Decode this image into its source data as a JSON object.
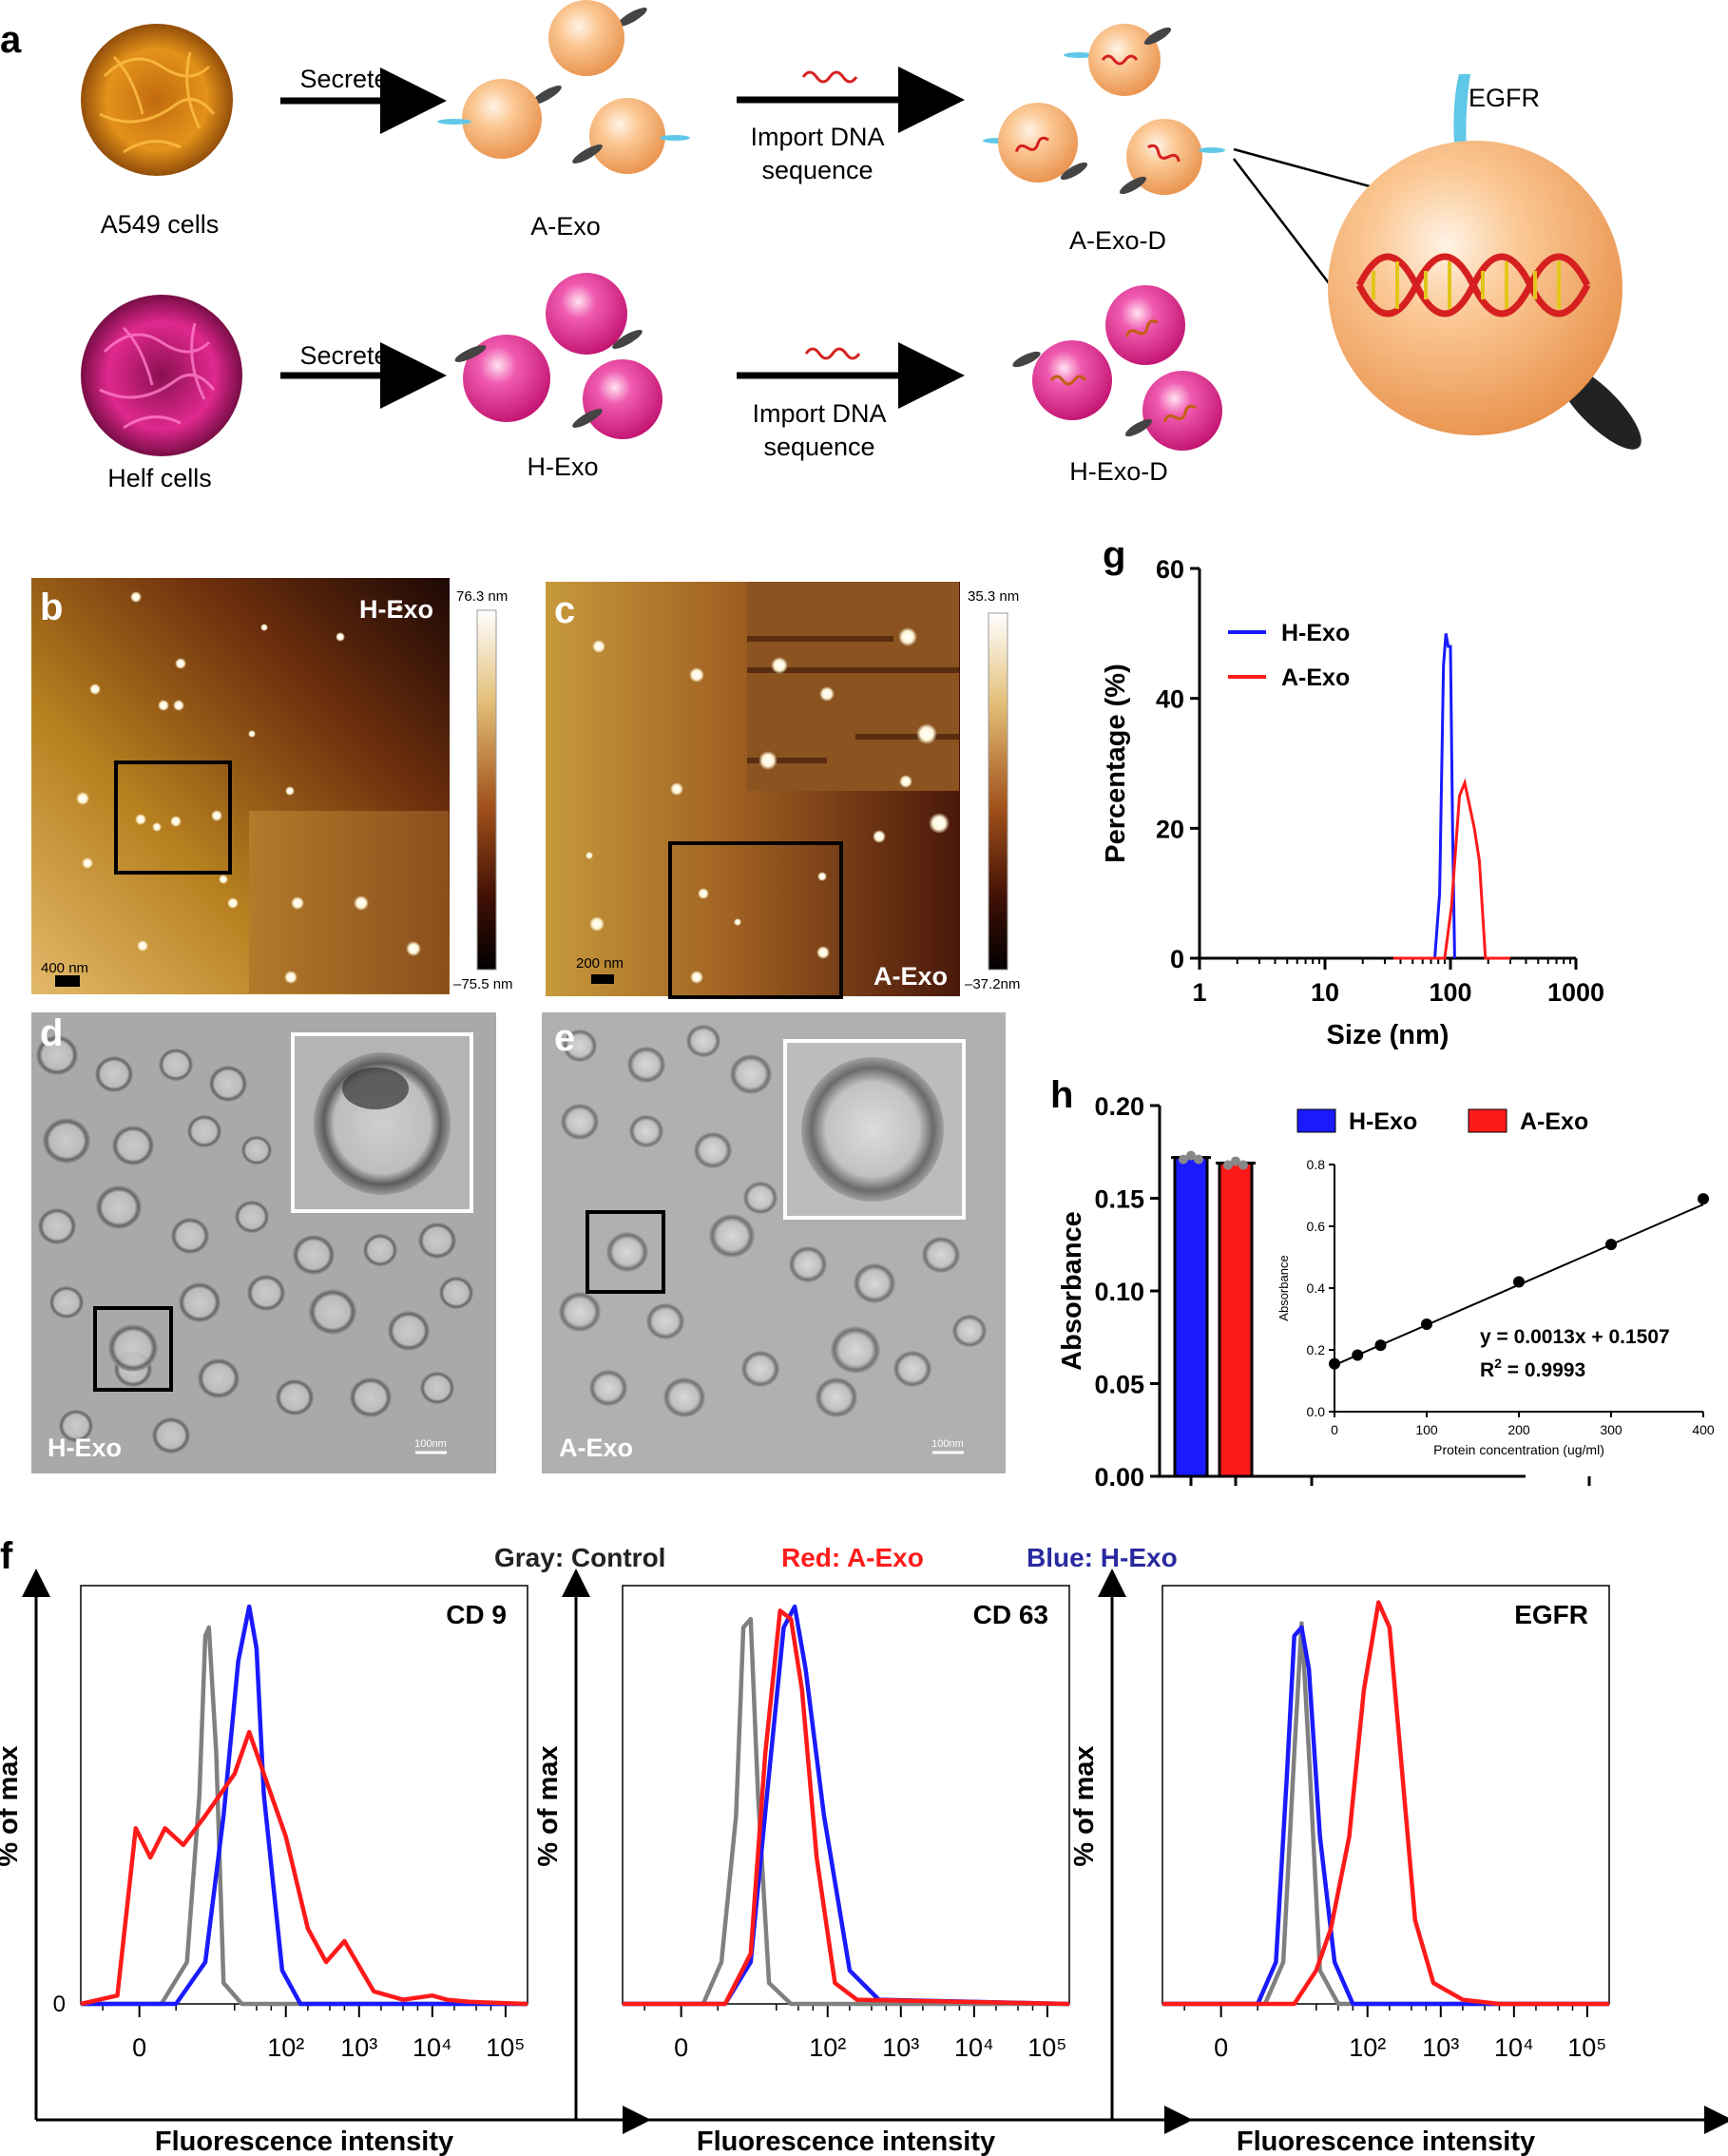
{
  "panel_a": {
    "letter": "a",
    "secrete_top": "Secrete",
    "secrete_bottom": "Secrete",
    "import_top_1": "Import DNA",
    "import_top_2": "sequence",
    "import_bottom_1": "Import DNA",
    "import_bottom_2": "sequence",
    "a549_label": "A549 cells",
    "helf_label": "Helf cells",
    "a_exo": "A-Exo",
    "h_exo": "H-Exo",
    "a_exo_d": "A-Exo-D",
    "h_exo_d": "H-Exo-D",
    "egfr": "EGFR",
    "colors": {
      "a_exo": "#f4b27a",
      "h_exo": "#e0288f",
      "egfr": "#5fc8e8"
    }
  },
  "panel_b": {
    "letter": "b",
    "sample": "H-Exo",
    "scale_max": "76.3 nm",
    "scale_min": "–75.5 nm",
    "scalebar": "400 nm"
  },
  "panel_c": {
    "letter": "c",
    "sample": "A-Exo",
    "scale_max": "35.3 nm",
    "scale_min": "–37.2nm",
    "scalebar": "200 nm"
  },
  "panel_d": {
    "letter": "d",
    "sample": "H-Exo",
    "scalebar": "100nm"
  },
  "panel_e": {
    "letter": "e",
    "sample": "A-Exo",
    "scalebar": "100nm"
  },
  "panel_f": {
    "letter": "f",
    "legend_gray": "Gray: Control",
    "legend_red": "Red: A-Exo",
    "legend_blue": "Blue: H-Exo",
    "ylabel": "% of max",
    "xlabel": "Fluorescence intensity",
    "zero_label": "0",
    "plots": [
      {
        "title": "CD 9"
      },
      {
        "title": "CD 63"
      },
      {
        "title": "EGFR"
      }
    ],
    "xticks": [
      "0",
      "10²",
      "10³",
      "10⁴",
      "10⁵"
    ]
  },
  "panel_g": {
    "letter": "g"
  },
  "panel_h": {
    "letter": "h"
  },
  "chart_data": [
    {
      "type": "line",
      "panel": "g",
      "xlabel": "Size (nm)",
      "ylabel": "Percentage (%)",
      "x_scale": "log",
      "xlim": [
        1,
        1000
      ],
      "ylim": [
        0,
        60
      ],
      "xticks": [
        "1",
        "10",
        "100",
        "1000"
      ],
      "yticks": [
        "0",
        "20",
        "40",
        "60"
      ],
      "legend_position": "top-left",
      "series": [
        {
          "name": "H-Exo",
          "color": "#1a1aff",
          "x": [
            75,
            82,
            88,
            92,
            96,
            100,
            104,
            108
          ],
          "y": [
            0,
            10,
            45,
            50,
            48,
            48,
            20,
            0
          ]
        },
        {
          "name": "A-Exo",
          "color": "#ff1a1a",
          "x": [
            35,
            90,
            102,
            118,
            130,
            155,
            170,
            190,
            230,
            300
          ],
          "y": [
            0,
            0,
            8,
            25,
            27,
            20,
            15,
            0,
            0,
            0
          ]
        }
      ]
    },
    {
      "type": "bar",
      "panel": "h",
      "ylabel": "Absorbance",
      "ylim": [
        0,
        0.2
      ],
      "yticks": [
        "0.00",
        "0.05",
        "0.10",
        "0.15",
        "0.20"
      ],
      "legend_position": "top",
      "categories": [
        "H-Exo",
        "A-Exo"
      ],
      "values": [
        0.172,
        0.169
      ],
      "colors": [
        "#1a1aff",
        "#ff1a1a"
      ]
    },
    {
      "type": "scatter",
      "panel": "h-inset",
      "xlabel": "Protein concentration (ug/ml)",
      "ylabel": "Absorbance",
      "xlim": [
        0,
        400
      ],
      "ylim": [
        0,
        0.8
      ],
      "xticks": [
        "0",
        "100",
        "200",
        "300",
        "400"
      ],
      "yticks": [
        "0.0",
        "0.2",
        "0.4",
        "0.6",
        "0.8"
      ],
      "x": [
        0,
        25,
        50,
        100,
        200,
        300,
        400
      ],
      "y": [
        0.155,
        0.183,
        0.215,
        0.283,
        0.42,
        0.541,
        0.689
      ],
      "fit_equation": "y = 0.0013x + 0.1507",
      "r2_prefix": "R",
      "r2_sup": "2",
      "r2_value": " = 0.9993",
      "fit_slope": 0.0013,
      "fit_intercept": 0.1507
    },
    {
      "type": "line",
      "panel": "f",
      "series_colors": {
        "control": "#808080",
        "a_exo": "#ff1a1a",
        "h_exo": "#1a1aff"
      },
      "note_x": "values in tick units: 0 = zero, 2 = 10^2, 3 = 10^3, 4 = 10^4, 5 = 10^5",
      "histograms": [
        {
          "title": "CD 9",
          "control": {
            "x": [
              -0.8,
              0.3,
              0.65,
              0.82,
              0.9,
              0.95,
              1.05,
              1.15,
              1.4,
              2.0,
              5.3
            ],
            "y": [
              0,
              0,
              10,
              50,
              88,
              90,
              60,
              5,
              0,
              0,
              0
            ]
          },
          "h_exo": {
            "x": [
              -0.8,
              0.5,
              0.9,
              1.15,
              1.35,
              1.5,
              1.6,
              1.7,
              1.95,
              2.2,
              2.5,
              5.3
            ],
            "y": [
              0,
              0,
              10,
              45,
              82,
              95,
              85,
              50,
              8,
              0,
              0,
              0
            ]
          },
          "a_exo": {
            "x": [
              -0.8,
              -0.3,
              -0.05,
              0.15,
              0.35,
              0.6,
              0.9,
              1.3,
              1.5,
              1.7,
              2.0,
              2.3,
              2.55,
              2.8,
              3.2,
              3.6,
              4.0,
              4.2,
              4.5,
              5.3
            ],
            "y": [
              0,
              2,
              42,
              35,
              42,
              38,
              45,
              55,
              65,
              55,
              40,
              18,
              10,
              15,
              3,
              1,
              2,
              1,
              0.5,
              0
            ]
          }
        },
        {
          "title": "CD 63",
          "control": {
            "x": [
              -0.8,
              0.3,
              0.55,
              0.75,
              0.85,
              0.95,
              1.05,
              1.2,
              1.5,
              5.3
            ],
            "y": [
              0,
              0,
              10,
              45,
              90,
              92,
              50,
              5,
              0,
              0
            ]
          },
          "h_exo": {
            "x": [
              -0.8,
              0.6,
              0.95,
              1.2,
              1.4,
              1.55,
              1.7,
              1.95,
              2.3,
              2.7,
              5.3
            ],
            "y": [
              0,
              0,
              10,
              55,
              90,
              95,
              80,
              45,
              8,
              1,
              0
            ]
          },
          "a_exo": {
            "x": [
              -0.8,
              0.6,
              0.95,
              1.15,
              1.35,
              1.5,
              1.65,
              1.85,
              2.1,
              2.4,
              5.3
            ],
            "y": [
              0,
              0,
              12,
              60,
              94,
              92,
              75,
              35,
              5,
              1,
              0
            ]
          }
        },
        {
          "title": "EGFR",
          "control": {
            "x": [
              -0.8,
              0.6,
              0.85,
              1.0,
              1.1,
              1.2,
              1.35,
              1.6,
              5.3
            ],
            "y": [
              0,
              0,
              10,
              60,
              91,
              60,
              8,
              0,
              0
            ]
          },
          "h_exo": {
            "x": [
              -0.8,
              0.5,
              0.75,
              0.9,
              1.0,
              1.1,
              1.2,
              1.35,
              1.55,
              1.8,
              5.3
            ],
            "y": [
              0,
              0,
              10,
              55,
              88,
              90,
              80,
              40,
              10,
              0,
              0
            ]
          },
          "a_exo": {
            "x": [
              -0.8,
              1.0,
              1.3,
              1.5,
              1.75,
              1.95,
              2.15,
              2.3,
              2.45,
              2.65,
              2.9,
              3.3,
              3.8,
              5.3
            ],
            "y": [
              0,
              0,
              8,
              18,
              40,
              75,
              96,
              90,
              60,
              20,
              5,
              1,
              0,
              0
            ]
          }
        }
      ]
    }
  ]
}
